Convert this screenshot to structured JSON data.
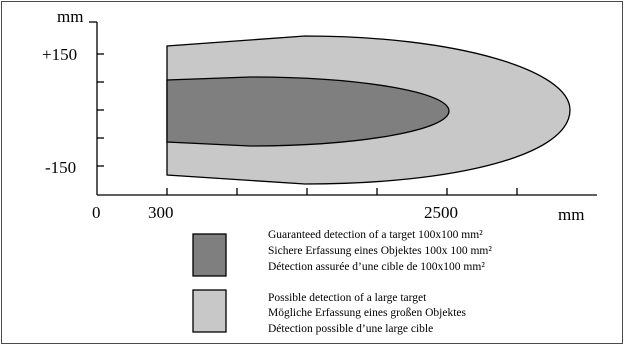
{
  "y_axis": {
    "unit": "mm",
    "tick_labels": [
      "+150",
      "-150"
    ]
  },
  "x_axis": {
    "unit": "mm",
    "tick_labels": [
      "0",
      "300",
      "2500"
    ]
  },
  "zones": [
    {
      "name": "possible",
      "fill": "#c8c8c8",
      "x_start_mm": 300,
      "x_end_mm": 3050,
      "y_half_mm": 170
    },
    {
      "name": "guaranteed",
      "fill": "#7f7f7f",
      "x_start_mm": 300,
      "x_end_mm": 2500,
      "y_half_mm": 95
    }
  ],
  "legend": [
    {
      "color": "#7f7f7f",
      "lines": [
        "Guaranteed detection of a target 100x100 mm²",
        "Sichere Erfassung eines Objektes 100x 100 mm²",
        "Détection assurée d’une cible de 100x100 mm²"
      ]
    },
    {
      "color": "#c8c8c8",
      "lines": [
        "Possible detection of a large target",
        "Mögliche Erfassung eines  großen Objektes",
        "Détection possible d’une large cible"
      ]
    }
  ]
}
